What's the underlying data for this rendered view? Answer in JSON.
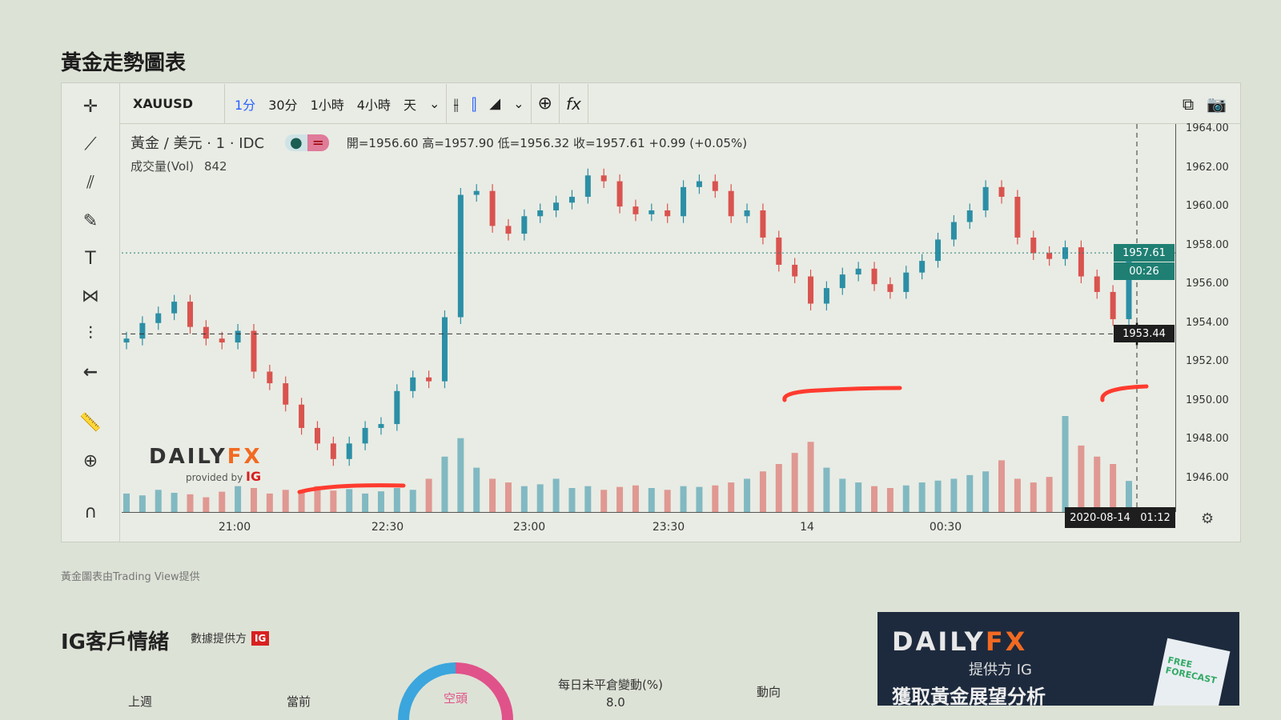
{
  "page": {
    "title": "黃金走勢圖表"
  },
  "toolbar": {
    "symbol": "XAUUSD",
    "intervals": [
      "1分",
      "30分",
      "1小時",
      "4小時",
      "天"
    ],
    "active_interval": "1分"
  },
  "legend": {
    "name": "黃金 / 美元 · 1 · IDC",
    "open": "開=1956.60",
    "high": "高=1957.90",
    "low": "低=1956.32",
    "close": "收=1957.61",
    "change": "+0.99 (+0.05%)",
    "volume_label": "成交量(Vol)",
    "volume_value": "842"
  },
  "watermark": {
    "brand": "DAILYFX",
    "provided_by": "provided by",
    "provider": "IG"
  },
  "price_tags": {
    "last": "1957.61",
    "countdown": "00:26",
    "crosshair": "1953.44"
  },
  "time_tag": {
    "date": "2020-08-14",
    "time": "01:12"
  },
  "colors": {
    "up": "#2b8fa6",
    "down": "#d9534f",
    "last_tag": "#1f7f73",
    "annotation": "#ff3b2f"
  },
  "chart_data": {
    "type": "candlestick",
    "symbol": "XAUUSD",
    "interval": "1分",
    "ylim": [
      1945,
      1964.6
    ],
    "y_ticks": [
      "1964.00",
      "1962.00",
      "1960.00",
      "1958.00",
      "1956.00",
      "1954.00",
      "1952.00",
      "1950.00",
      "1948.00",
      "1946.00"
    ],
    "x_ticks": [
      "21:00",
      "22:30",
      "23:00",
      "23:30",
      "14",
      "00:30"
    ],
    "first_open": 1953.0,
    "closes": [
      1953.2,
      1954.0,
      1954.5,
      1955.1,
      1953.8,
      1953.2,
      1953.0,
      1953.6,
      1951.5,
      1950.9,
      1949.8,
      1948.6,
      1947.8,
      1947.0,
      1947.8,
      1948.6,
      1948.8,
      1950.5,
      1951.2,
      1951.0,
      1954.3,
      1960.6,
      1960.8,
      1959.0,
      1958.6,
      1959.5,
      1959.8,
      1960.2,
      1960.5,
      1961.6,
      1961.3,
      1960.0,
      1959.6,
      1959.8,
      1959.5,
      1961.0,
      1961.3,
      1960.8,
      1959.5,
      1959.8,
      1958.4,
      1957.0,
      1956.4,
      1955.0,
      1955.8,
      1956.5,
      1956.8,
      1956.0,
      1955.6,
      1956.6,
      1957.2,
      1958.3,
      1959.2,
      1959.8,
      1961.0,
      1960.5,
      1958.4,
      1957.6,
      1957.3,
      1957.9,
      1956.4,
      1955.6,
      1954.2,
      1957.61
    ],
    "volumes": [
      500,
      450,
      600,
      520,
      480,
      400,
      550,
      700,
      650,
      500,
      600,
      520,
      700,
      580,
      620,
      500,
      560,
      650,
      600,
      900,
      1500,
      2000,
      1200,
      900,
      800,
      700,
      750,
      900,
      650,
      700,
      600,
      680,
      720,
      650,
      600,
      700,
      680,
      720,
      800,
      900,
      1100,
      1300,
      1600,
      1900,
      1200,
      900,
      800,
      700,
      650,
      720,
      800,
      850,
      900,
      1000,
      1100,
      1400,
      900,
      800,
      950,
      2600,
      1800,
      1500,
      1300,
      842
    ],
    "last_price": 1957.61,
    "crosshair_price": 1953.44,
    "grid": false
  },
  "footer": {
    "credit": "黃金圖表由Trading View提供"
  },
  "sentiment": {
    "title": "IG客戶情緒",
    "provider_label": "數據提供方",
    "provider_badge": "IG",
    "donut_label": "空頭",
    "col_last_week": "上週",
    "col_current": "當前",
    "col_daily_oi": "每日未平倉變動(%)",
    "daily_oi_value": "8.0",
    "col_direction": "動向"
  },
  "ad": {
    "brand_a": "DAILY",
    "brand_b": "FX",
    "provider": "提供方 IG",
    "cta": "獲取黃金展望分析",
    "book": "FREE FORECAST"
  }
}
